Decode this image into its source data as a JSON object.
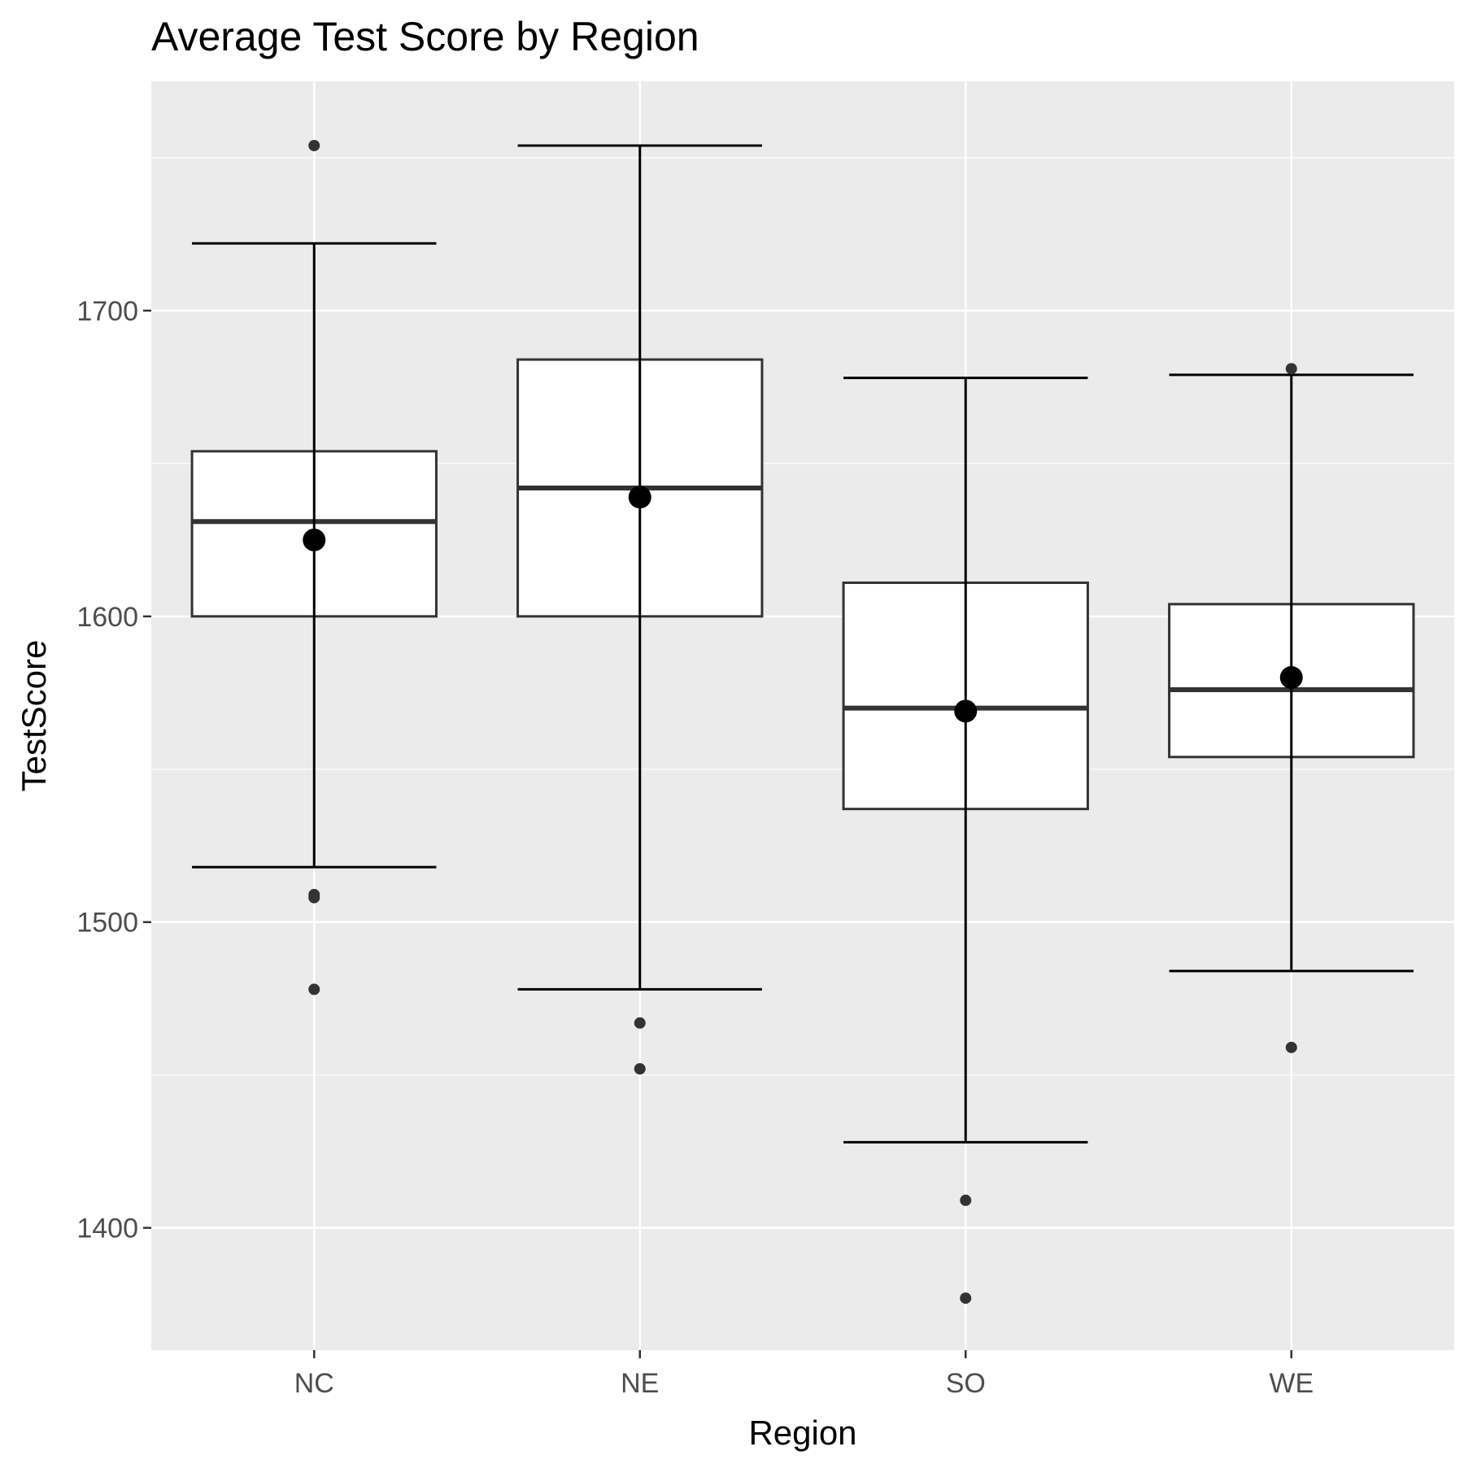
{
  "chart_data": {
    "type": "boxplot",
    "title": "Average Test Score by Region",
    "xlabel": "Region",
    "ylabel": "TestScore",
    "categories": [
      "NC",
      "NE",
      "SO",
      "WE"
    ],
    "ylim": [
      1360,
      1775
    ],
    "yticks": [
      1400,
      1500,
      1600,
      1700
    ],
    "grid": true,
    "boxes": [
      {
        "category": "NC",
        "whisker_low": 1518,
        "q1": 1600,
        "median": 1631,
        "q3": 1654,
        "whisker_high": 1722,
        "mean": 1625,
        "outliers": [
          1754,
          1509,
          1508,
          1478
        ]
      },
      {
        "category": "NE",
        "whisker_low": 1478,
        "q1": 1600,
        "median": 1642,
        "q3": 1684,
        "whisker_high": 1754,
        "mean": 1639,
        "outliers": [
          1467,
          1452
        ]
      },
      {
        "category": "SO",
        "whisker_low": 1428,
        "q1": 1537,
        "median": 1570,
        "q3": 1611,
        "whisker_high": 1678,
        "mean": 1569,
        "outliers": [
          1409,
          1377
        ]
      },
      {
        "category": "WE",
        "whisker_low": 1484,
        "q1": 1554,
        "median": 1576,
        "q3": 1604,
        "whisker_high": 1679,
        "mean": 1580,
        "outliers": [
          1681,
          1459
        ]
      }
    ],
    "colors": {
      "panel": "#ebebeb",
      "grid": "#ffffff",
      "box_fill": "#ffffff",
      "box_line": "#333333",
      "whisker": "#000000",
      "mean_point": "#000000",
      "outlier": "#333333"
    }
  }
}
